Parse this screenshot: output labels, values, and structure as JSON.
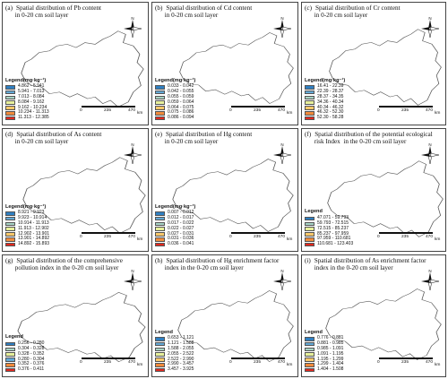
{
  "panels": [
    {
      "label": "(a)",
      "title": [
        "Spatial distribution of Pb content",
        "in 0-20 cm soil layer"
      ],
      "legend_title": "Legend(mg·kg⁻¹)",
      "legend": [
        "4.862 - 5.941",
        "5.941 - 7.013",
        "7.013 - 8.084",
        "8.084 - 9.162",
        "9.162 - 10.234",
        "10.234 - 11.313",
        "11.313 - 12.385"
      ],
      "colors": [
        "#2f7fc1",
        "#63a9d6",
        "#a7d3c4",
        "#e6ef9a",
        "#f7c76a",
        "#f08a3c",
        "#e3281f"
      ],
      "scale": [
        "0",
        "235",
        "470"
      ],
      "scale_unit": "km",
      "north": "N"
    },
    {
      "label": "(b)",
      "title": [
        "Spatial distribution of Cd content",
        "in 0-20 cm soil layer"
      ],
      "legend_title": "Legend(mg·kg⁻¹)",
      "legend": [
        "0.033 - 0.042",
        "0.042 - 0.055",
        "0.055 - 0.059",
        "0.059 - 0.064",
        "0.064 - 0.075",
        "0.075 - 0.086",
        "0.086 - 0.094"
      ],
      "colors": [
        "#2f7fc1",
        "#63a9d6",
        "#a7d3c4",
        "#e6ef9a",
        "#f7c76a",
        "#f08a3c",
        "#e3281f"
      ],
      "scale": [
        "0",
        "235",
        "470"
      ],
      "scale_unit": "km",
      "north": "N"
    },
    {
      "label": "(c)",
      "title": [
        "Spatial distribution of Cr content",
        "in 0-20 cm soil layer"
      ],
      "legend_title": "Legend(mg·kg⁻¹)",
      "legend": [
        "16.41 - 22.39",
        "22.39 - 28.37",
        "28.37 - 34.35",
        "34.36 - 40.34",
        "40.34 - 46.32",
        "46.32 - 52.30",
        "52.30 - 58.28"
      ],
      "colors": [
        "#2f7fc1",
        "#63a9d6",
        "#a7d3c4",
        "#e6ef9a",
        "#f7c76a",
        "#f08a3c",
        "#e3281f"
      ],
      "scale": [
        "0",
        "235",
        "470"
      ],
      "scale_unit": "km",
      "north": "N"
    },
    {
      "label": "(d)",
      "title": [
        "Spatial distribution of As content",
        "in 0-20 cm soil layer"
      ],
      "legend_title": "Legend(mg·kg⁻¹)",
      "legend": [
        "8.921 - 9.923",
        "9.923 - 10.914",
        "10.914 - 11.913",
        "11.913 - 12.902",
        "12.902 - 13.901",
        "13.901 - 14.892",
        "14.892 - 15.893"
      ],
      "colors": [
        "#2f7fc1",
        "#63a9d6",
        "#a7d3c4",
        "#e6ef9a",
        "#f7c76a",
        "#f08a3c",
        "#e3281f"
      ],
      "scale": [
        "0",
        "235",
        "470"
      ],
      "scale_unit": "km",
      "north": "N"
    },
    {
      "label": "(e)",
      "title": [
        "Spatial distribution of Hg content",
        "in 0-20 cm soil layer"
      ],
      "legend_title": "Legend(mg·kg⁻¹)",
      "legend": [
        "0.007 - 0.012",
        "0.012 - 0.017",
        "0.017 - 0.022",
        "0.022 - 0.027",
        "0.027 - 0.031",
        "0.031 - 0.036",
        "0.036 - 0.041"
      ],
      "colors": [
        "#2f7fc1",
        "#63a9d6",
        "#a7d3c4",
        "#e6ef9a",
        "#f7c76a",
        "#f08a3c",
        "#e3281f"
      ],
      "scale": [
        "0",
        "235",
        "470"
      ],
      "scale_unit": "km",
      "north": "N"
    },
    {
      "label": "(f)",
      "title": [
        "Spatial distribution of the potential ecological",
        "risk Index  in the 0-20 cm soil layer"
      ],
      "legend_title": "Legend",
      "legend": [
        "47.071 - 59.793",
        "59.793 - 72.515",
        "72.515 - 85.237",
        "85.237 - 97.959",
        "97.959 - 110.681",
        "110.681 - 123.403"
      ],
      "colors": [
        "#2f7fc1",
        "#a7d3c4",
        "#e6ef9a",
        "#f7c76a",
        "#f08a3c",
        "#e3281f"
      ],
      "scale": [
        "0",
        "235",
        "470"
      ],
      "scale_unit": "km",
      "north": "N"
    },
    {
      "label": "(g)",
      "title": [
        "Spatial distribution of the comprehensive",
        "pollution index in the 0-20 cm soil layer"
      ],
      "legend_title": "Legend",
      "legend": [
        "0.256 - 0.280",
        "0.304 - 0.328",
        "0.328 - 0.352",
        "0.280 - 0.304",
        "0.352 - 0.376",
        "0.376 - 0.411"
      ],
      "colors": [
        "#2f7fc1",
        "#a7d3c4",
        "#e6ef9a",
        "#63a9d6",
        "#f08a3c",
        "#e3281f"
      ],
      "scale": [
        "0",
        "235",
        "470"
      ],
      "scale_unit": "km",
      "north": "N"
    },
    {
      "label": "(h)",
      "title": [
        "Spatial distribution of Hg enrichment factor",
        "index in the 0-20 cm soil layer"
      ],
      "legend_title": "Legend",
      "legend": [
        "0.653 - 1.121",
        "1.121 - 1.588",
        "1.588 - 2.055",
        "2.055 - 2.522",
        "2.522 - 2.990",
        "2.990 - 3.457",
        "3.457 - 3.925"
      ],
      "colors": [
        "#2f7fc1",
        "#63a9d6",
        "#a7d3c4",
        "#e6ef9a",
        "#f7c76a",
        "#f08a3c",
        "#e3281f"
      ],
      "scale": [
        "0",
        "235",
        "470"
      ],
      "scale_unit": "km",
      "north": "N"
    },
    {
      "label": "(i)",
      "title": [
        "Spatial distribution of As enrichment factor",
        "index in the 0-20 cm soil layer"
      ],
      "legend_title": "Legend",
      "legend": [
        "0.776 - 0.881",
        "0.881 - 0.985",
        "0.985 - 1.091",
        "1.091 - 1.195",
        "1.195 - 1.299",
        "1.299 - 1.404",
        "1.404 - 1.508"
      ],
      "colors": [
        "#2f7fc1",
        "#63a9d6",
        "#a7d3c4",
        "#e6ef9a",
        "#f7c76a",
        "#f08a3c",
        "#e3281f"
      ],
      "scale": [
        "0",
        "235",
        "470"
      ],
      "scale_unit": "km",
      "north": "N"
    }
  ]
}
